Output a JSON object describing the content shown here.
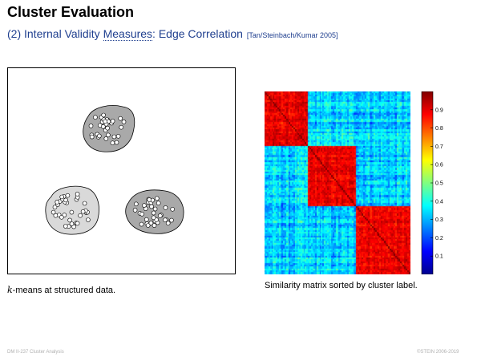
{
  "slide": {
    "title": "Cluster Evaluation",
    "subtitle_prefix": "(2) Internal Validity ",
    "subtitle_measures": "Measures",
    "subtitle_suffix": ": Edge Correlation",
    "reference": "[Tan/Steinbach/Kumar 2005]"
  },
  "figure_left": {
    "caption_k": "k",
    "caption_rest": "-means at structured data."
  },
  "figure_right": {
    "caption": "Similarity matrix sorted by cluster label."
  },
  "footer": {
    "left": "DM II-237   Cluster Analysis",
    "right": "©STEIN 2006-2019"
  },
  "colors": {
    "title": "#000000",
    "subtitle": "#1f3f8f",
    "blob_fill_dark": "#a9a9a9",
    "blob_fill_light": "#d9d9d9",
    "point_fill": "#ffffff"
  },
  "chart_data": {
    "type": "heatmap",
    "n_points": 100,
    "cluster_sizes": [
      30,
      33,
      37
    ],
    "colormap": "jet",
    "colorbar_range": [
      0,
      1
    ],
    "colorbar_ticks": [
      "0.1",
      "0.2",
      "0.3",
      "0.4",
      "0.5",
      "0.6",
      "0.7",
      "0.8",
      "0.9"
    ],
    "within_cluster_similarity": [
      0.8,
      0.98
    ],
    "between_cluster_similarity": [
      0.15,
      0.5
    ]
  }
}
